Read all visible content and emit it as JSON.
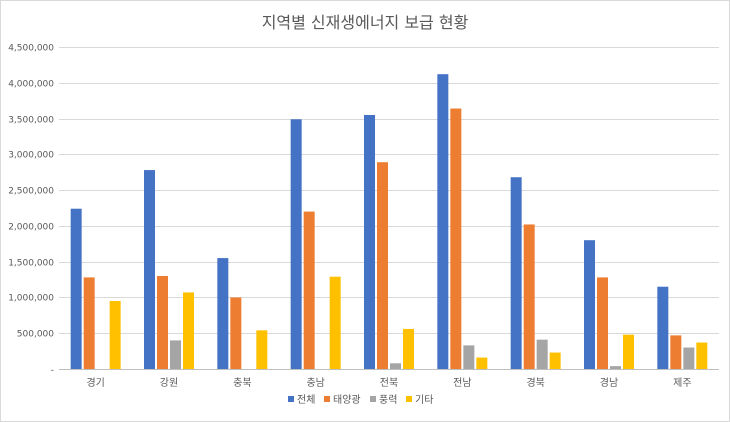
{
  "chart_data": {
    "type": "bar",
    "title": "지역별 신재생에너지 보급 현황",
    "xlabel": "",
    "ylabel": "",
    "categories": [
      "경기",
      "강원",
      "충북",
      "충남",
      "전북",
      "전남",
      "경북",
      "경남",
      "제주"
    ],
    "series": [
      {
        "name": "전체",
        "color": "#4472C4",
        "values": [
          2240000,
          2780000,
          1550000,
          3490000,
          3550000,
          4120000,
          2680000,
          1800000,
          1150000
        ]
      },
      {
        "name": "태양광",
        "color": "#ED7D31",
        "values": [
          1280000,
          1300000,
          1000000,
          2200000,
          2890000,
          3640000,
          2020000,
          1280000,
          470000
        ]
      },
      {
        "name": "풍력",
        "color": "#A5A5A5",
        "values": [
          0,
          400000,
          0,
          0,
          80000,
          330000,
          410000,
          40000,
          300000
        ]
      },
      {
        "name": "기타",
        "color": "#FFC000",
        "values": [
          950000,
          1070000,
          540000,
          1290000,
          560000,
          160000,
          230000,
          480000,
          370000
        ]
      }
    ],
    "ylim": [
      0,
      4500000
    ],
    "y_ticks": [
      "-",
      "500,000",
      "1,000,000",
      "1,500,000",
      "2,000,000",
      "2,500,000",
      "3,000,000",
      "3,500,000",
      "4,000,000",
      "4,500,000"
    ],
    "grid": true,
    "legend_position": "bottom"
  }
}
